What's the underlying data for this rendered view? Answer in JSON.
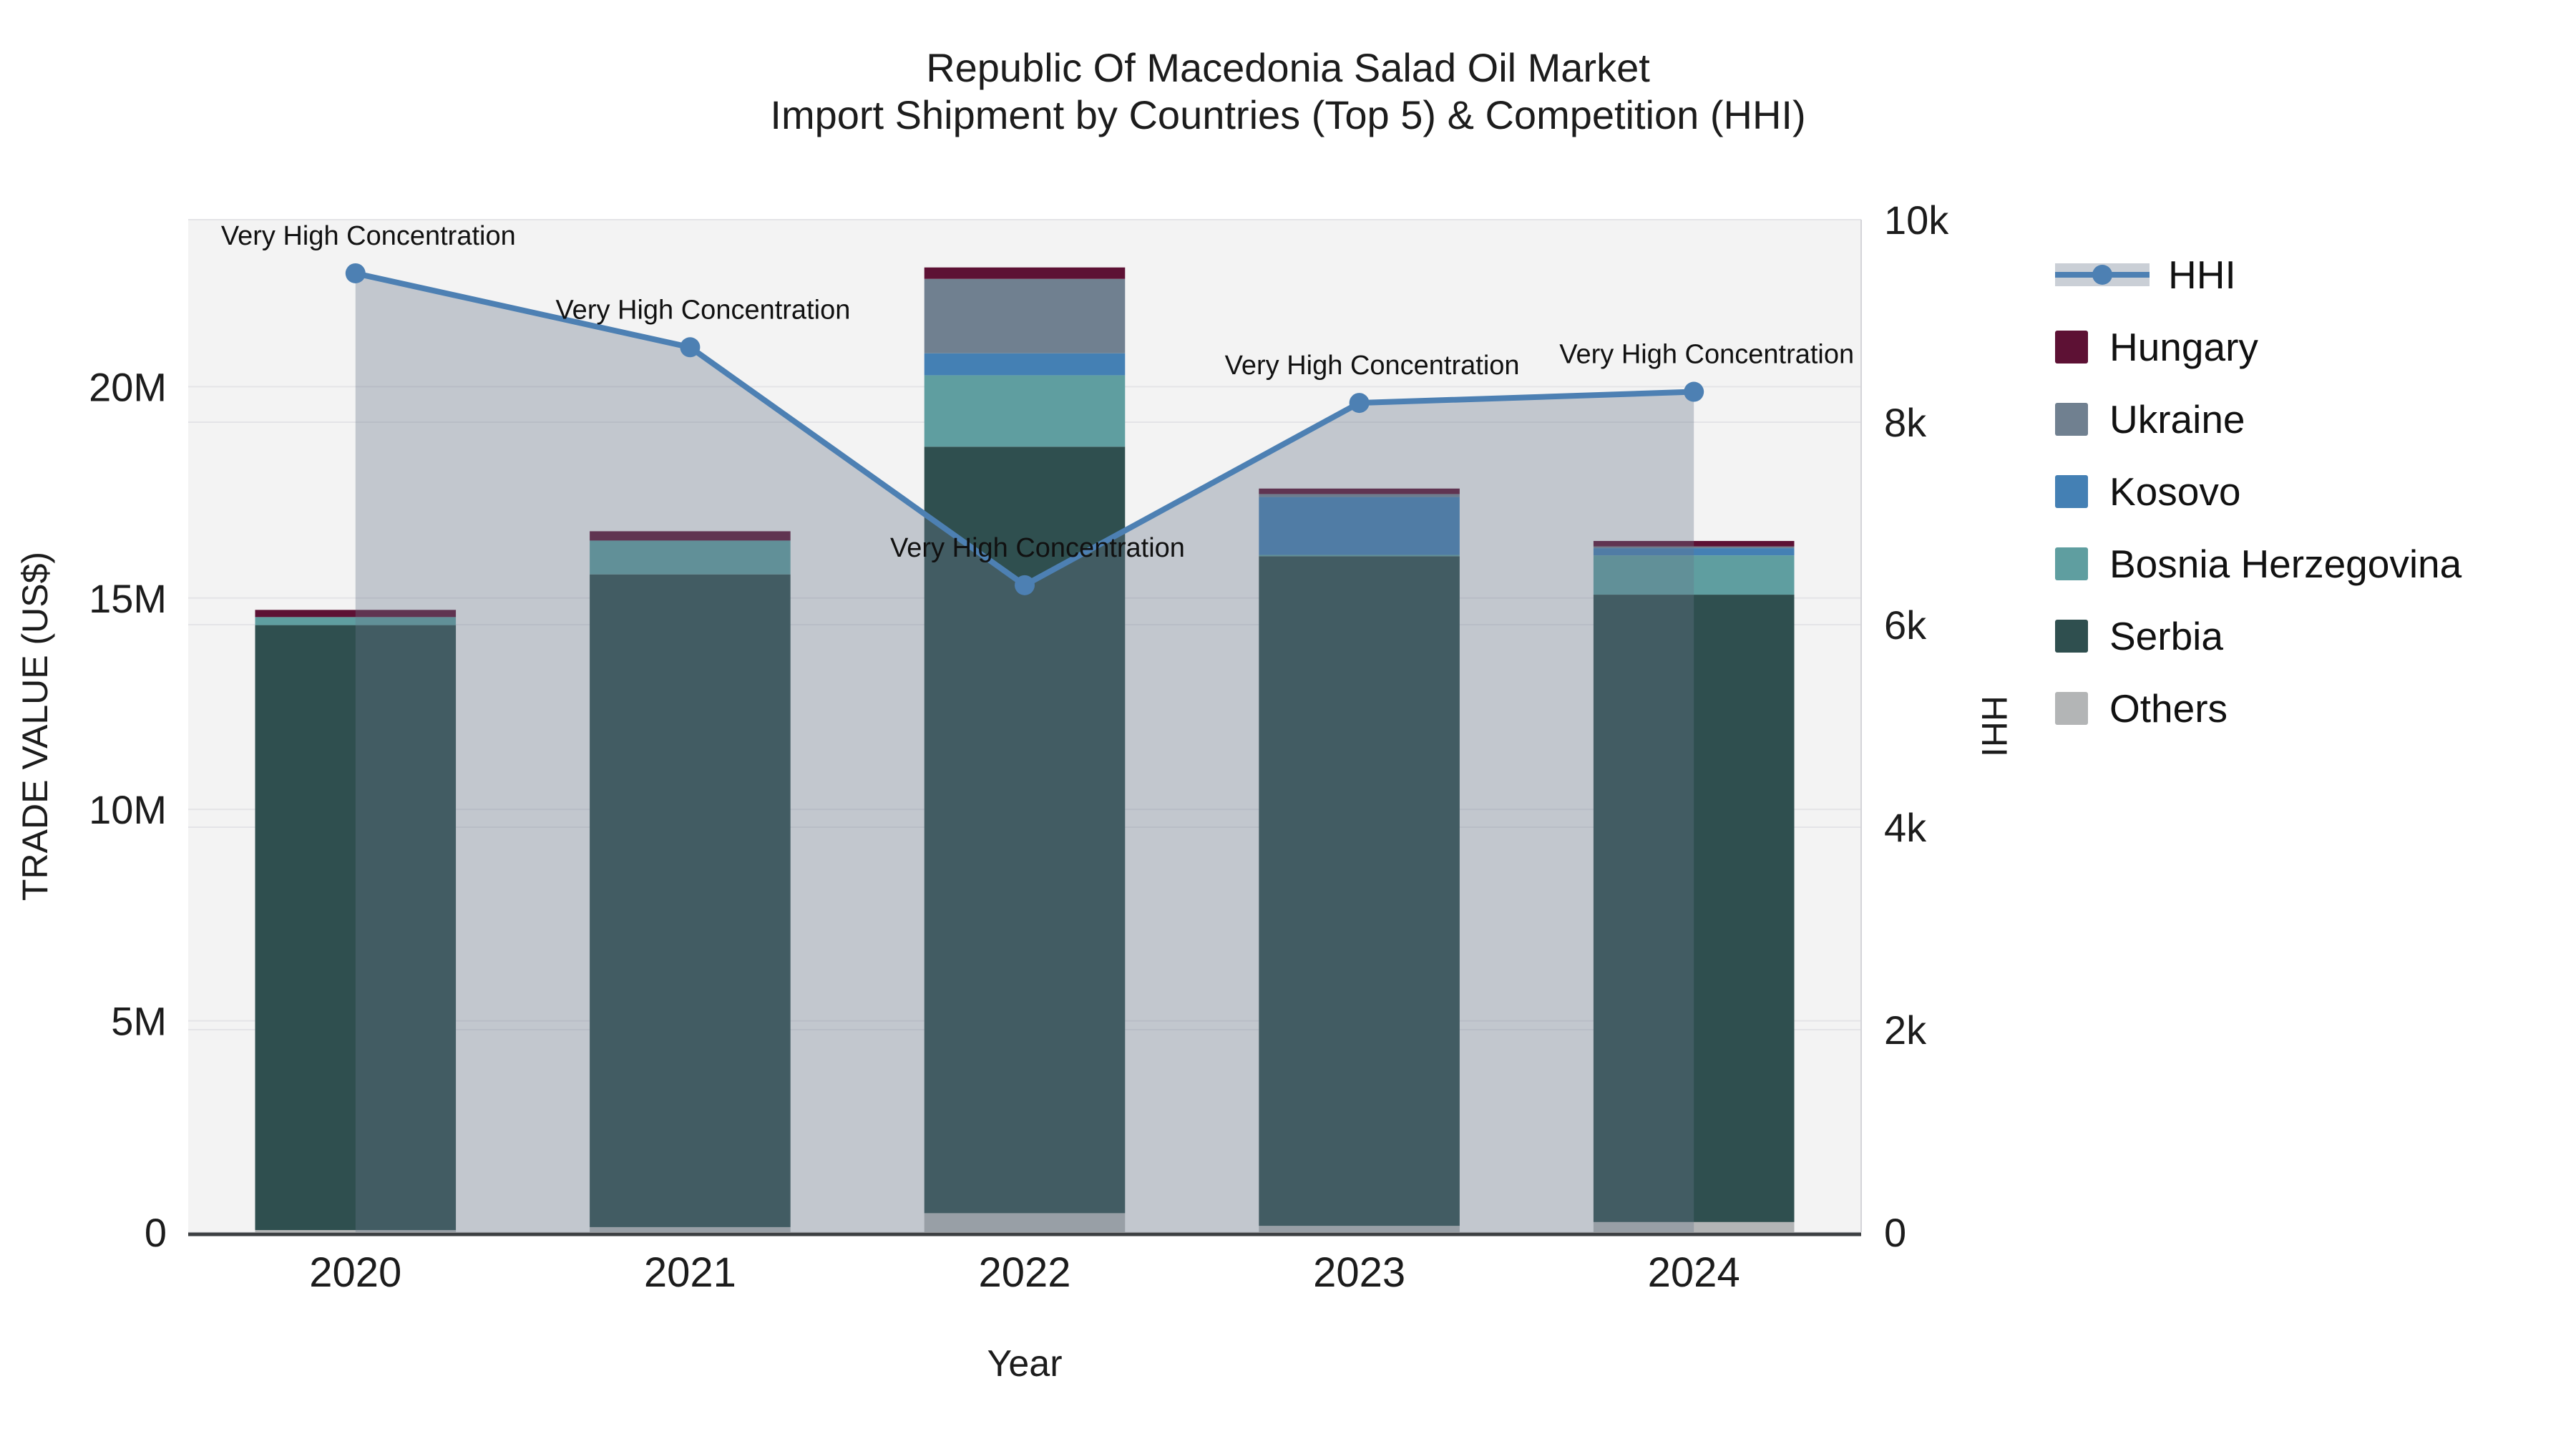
{
  "title": {
    "line1": "Republic Of Macedonia Salad Oil Market",
    "line2": "Import Shipment by Countries (Top 5) & Competition (HHI)"
  },
  "axes": {
    "x": {
      "title": "Year",
      "categories": [
        "2020",
        "2021",
        "2022",
        "2023",
        "2024"
      ]
    },
    "y_left": {
      "title": "TRADE VALUE (US$)",
      "ticks": [
        "0",
        "5M",
        "10M",
        "15M",
        "20M"
      ],
      "tick_values": [
        0,
        5000000,
        10000000,
        15000000,
        20000000
      ],
      "max_value": 23950000
    },
    "y_right": {
      "title": "HHI",
      "ticks": [
        "0",
        "2k",
        "4k",
        "6k",
        "8k",
        "10k"
      ],
      "tick_values": [
        0,
        2000,
        4000,
        6000,
        8000,
        10000
      ],
      "max_value": 10000
    }
  },
  "colors": {
    "hhi_line": "#4D80B3",
    "hhi_area": "rgba(104,118,138,0.35)",
    "hungary": "#5D1134",
    "ukraine": "#708090",
    "kosovo": "#4480B4",
    "bosnia_herzegovina": "#5F9EA0",
    "serbia": "#2F4F4F",
    "others": "#B3B5B6",
    "plot_background": "#F3F3F3",
    "gridline": "#E4E4E7",
    "axis_line": "#3C3F42"
  },
  "legend": [
    {
      "label": "HHI",
      "type": "line"
    },
    {
      "label": "Hungary",
      "type": "swatch"
    },
    {
      "label": "Ukraine",
      "type": "swatch"
    },
    {
      "label": "Kosovo",
      "type": "swatch"
    },
    {
      "label": "Bosnia Herzegovina",
      "type": "swatch"
    },
    {
      "label": "Serbia",
      "type": "swatch"
    },
    {
      "label": "Others",
      "type": "swatch"
    }
  ],
  "chart_data": {
    "type": "bar",
    "subtype": "stacked-bars-with-line",
    "categories": [
      "2020",
      "2021",
      "2022",
      "2023",
      "2024"
    ],
    "stack_order_note": "series listed bottom-to-top",
    "series": [
      {
        "name": "Others",
        "color_key": "others",
        "values": [
          50000,
          120000,
          450000,
          150000,
          240000
        ]
      },
      {
        "name": "Serbia",
        "color_key": "serbia",
        "values": [
          14310000,
          15440000,
          18130000,
          15840000,
          14840000
        ]
      },
      {
        "name": "Bosnia Herzegovina",
        "color_key": "bosnia_herzegovina",
        "values": [
          190000,
          800000,
          1690000,
          30000,
          930000
        ]
      },
      {
        "name": "Kosovo",
        "color_key": "kosovo",
        "values": [
          0,
          0,
          520000,
          1370000,
          170000
        ]
      },
      {
        "name": "Ukraine",
        "color_key": "ukraine",
        "values": [
          0,
          0,
          1760000,
          70000,
          40000
        ]
      },
      {
        "name": "Hungary",
        "color_key": "hungary",
        "values": [
          170000,
          220000,
          270000,
          130000,
          130000
        ]
      }
    ],
    "line": {
      "name": "HHI",
      "axis": "right",
      "values": [
        9470,
        8740,
        6390,
        8190,
        8300
      ]
    },
    "annotations": [
      "Very High Concentration",
      "Very High Concentration",
      "Very High Concentration",
      "Very High Concentration",
      "Very High Concentration"
    ],
    "xlabel": "Year",
    "ylabel_left": "TRADE VALUE (US$)",
    "ylabel_right": "HHI",
    "ylim_left": [
      0,
      23950000
    ],
    "ylim_right": [
      0,
      10000
    ],
    "grid": true,
    "legend_position": "right"
  }
}
